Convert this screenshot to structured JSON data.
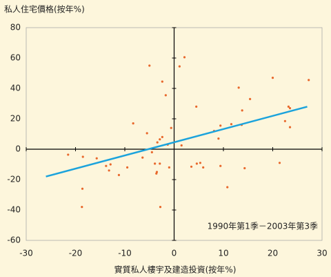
{
  "chart_data": {
    "type": "scatter",
    "title": "私人住宅價格(按年%)",
    "x_label": "實質私人樓宇及建造投資(按年%)",
    "annotation": "1990年第1季－2003年第3季",
    "xlim": [
      -30,
      30
    ],
    "ylim": [
      -60,
      80
    ],
    "xticks": [
      -30,
      -20,
      -10,
      0,
      10,
      20,
      30
    ],
    "yticks": [
      -60,
      -40,
      -20,
      0,
      20,
      40,
      60,
      80
    ],
    "color": "#e8682c",
    "x": [
      -21.5,
      -18.5,
      -18.6,
      -18.7,
      -15.7,
      -13.8,
      -13.2,
      -12.9,
      -11.2,
      -9.5,
      -8.3,
      -6.4,
      -5.5,
      -5.0,
      -4.5,
      -3.9,
      -3.6,
      -3.5,
      -3.4,
      -2.9,
      -2.8,
      -2.9,
      -2.4,
      -2.4,
      -1.7,
      -1.3,
      -1.0,
      -0.6,
      1.1,
      2.1,
      1.5,
      3.5,
      4.5,
      4.6,
      5.3,
      5.9,
      8.1,
      9.0,
      9.4,
      9.4,
      10.8,
      11.6,
      13.1,
      13.8,
      13.7,
      14.3,
      15.4,
      20.0,
      21.4,
      22.5,
      23.2,
      23.5,
      23.5,
      27.3
    ],
    "y": [
      -3.6,
      -5,
      -26,
      -38,
      -6,
      -11,
      -14,
      -10,
      -17,
      -12,
      17,
      -5.5,
      10.5,
      55,
      -2,
      -9.5,
      -16,
      -15,
      4.5,
      6.5,
      -38,
      -9.5,
      44.5,
      8,
      35.5,
      3,
      -12,
      14,
      54.5,
      60.5,
      2.5,
      -11.5,
      28,
      -9.5,
      -9,
      -12,
      12,
      7,
      15.5,
      -11,
      -25,
      16.5,
      40.5,
      25.5,
      16,
      -12.5,
      33,
      47,
      -9,
      18.5,
      28,
      27,
      14.5,
      45.5
    ],
    "fit_line": {
      "x": [
        -26,
        27
      ],
      "y": [
        -18,
        28
      ],
      "color": "#1ba3dc"
    }
  }
}
